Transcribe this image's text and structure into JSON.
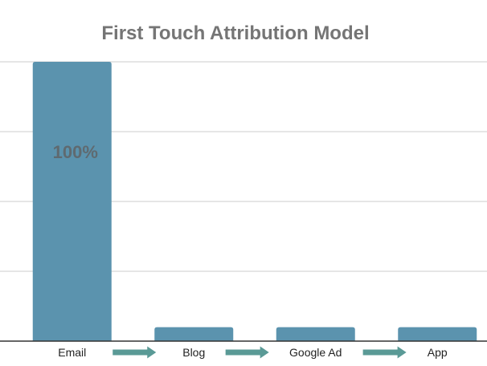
{
  "chart_data": {
    "type": "bar",
    "title": "First Touch Attribution Model",
    "categories": [
      "Email",
      "Blog",
      "Google Ad",
      "App"
    ],
    "values": [
      100,
      5,
      5,
      5
    ],
    "data_labels": [
      "100%",
      "",
      "",
      ""
    ],
    "xlabel": "",
    "ylabel": "",
    "ylim": [
      0,
      100
    ],
    "grid": true,
    "legend": "none",
    "flow_arrows": true,
    "colors": {
      "bar": "#5b93ae",
      "arrow": "#5a9a96",
      "title": "#757575",
      "grid": "#cccccc",
      "axis": "#333333",
      "tick_text": "#222222",
      "data_label": "#5f6a70"
    }
  }
}
